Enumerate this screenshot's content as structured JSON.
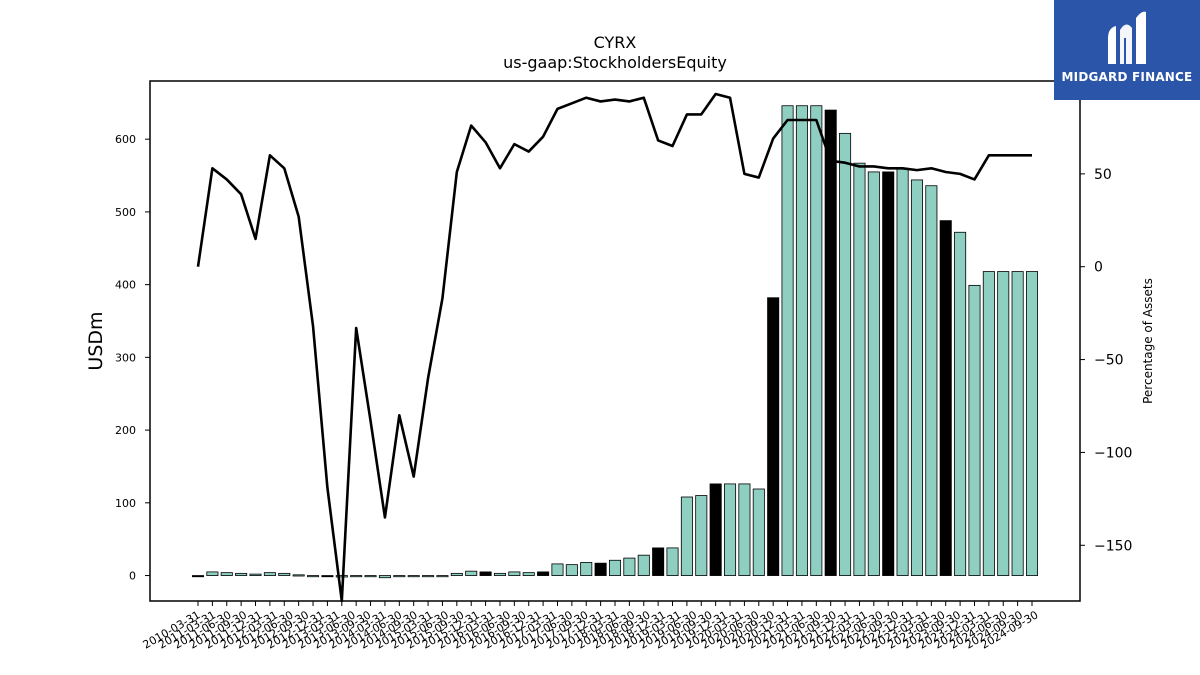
{
  "brand": {
    "name": "MIDGARD FINANCE",
    "bg_color": "#2a55a8"
  },
  "chart_data": {
    "type": "bar",
    "title": "CYRX",
    "subtitle": "us-gaap:StockholdersEquity",
    "ylabel": "USDm",
    "y2label": "Percentage of Assets",
    "ylim": [
      -35,
      680
    ],
    "y2lim": [
      -180,
      100
    ],
    "yticks": [
      0,
      100,
      200,
      300,
      400,
      500,
      600
    ],
    "y2ticks": [
      -150,
      -100,
      -50,
      0,
      50
    ],
    "bar_color_q": "#8ecfc2",
    "bar_color_fy": "#000000",
    "line_color": "#000000",
    "categories": [
      "2010-03-31",
      "2010-06-30",
      "2010-09-30",
      "2010-12-31",
      "2011-03-31",
      "2011-06-30",
      "2011-09-30",
      "2011-12-31",
      "2012-03-31",
      "2012-06-30",
      "2012-09-30",
      "2012-12-31",
      "2013-03-31",
      "2013-06-30",
      "2013-09-30",
      "2013-12-31",
      "2014-03-31",
      "2014-06-30",
      "2014-09-30",
      "2014-12-31",
      "2015-03-31",
      "2015-06-30",
      "2015-09-30",
      "2015-12-31",
      "2016-03-31",
      "2016-06-30",
      "2016-09-30",
      "2016-12-31",
      "2017-03-31",
      "2017-06-30",
      "2017-09-30",
      "2017-12-31",
      "2018-03-31",
      "2018-06-30",
      "2018-09-30",
      "2018-12-31",
      "2019-03-31",
      "2019-06-30",
      "2019-09-30",
      "2019-12-31",
      "2020-03-31",
      "2020-06-30",
      "2020-09-30",
      "2020-12-31",
      "2021-03-31",
      "2021-06-30",
      "2021-09-30",
      "2021-12-31",
      "2022-03-31",
      "2022-06-30",
      "2022-09-30",
      "2022-12-31",
      "2023-03-31",
      "2023-06-30",
      "2023-09-30",
      "2023-12-31",
      "2024-03-31",
      "2024-06-30",
      "2024-09-30"
    ],
    "xtick_labels": [
      "2010-03-31",
      "2011-03-31",
      "2011-06-30",
      "2011-09-30",
      "2011-12-31",
      "2012-03-31",
      "2012-06-30",
      "2012-09-30",
      "2012-12-31",
      "2013-03-31",
      "2013-06-30",
      "2013-09-30",
      "2014-03-31",
      "2014-06-30",
      "2014-09-30",
      "2015-03-31",
      "2015-06-30",
      "2015-09-30",
      "2015-12-31",
      "2016-03-31",
      "2016-06-30",
      "2016-09-30",
      "2016-12-31",
      "2017-03-31",
      "2017-06-30",
      "2017-09-30",
      "2017-12-31",
      "2018-03-31",
      "2018-06-30",
      "2018-09-30",
      "2018-12-31",
      "2019-03-31",
      "2019-06-30",
      "2019-09-30",
      "2019-12-31",
      "2020-03-31",
      "2020-06-30",
      "2020-09-30",
      "2020-12-31",
      "2021-03-31",
      "2021-06-30",
      "2021-09-30",
      "2021-12-31",
      "2022-03-31",
      "2022-06-30",
      "2022-09-30",
      "2022-12-31",
      "2023-03-31",
      "2023-06-30",
      "2023-09-30",
      "2023-12-31",
      "2024-03-31",
      "2024-06-30",
      "2024-09-30",
      "2024-09-30"
    ],
    "values": [
      -1,
      5,
      4,
      3,
      2,
      4,
      3,
      1,
      0,
      -1,
      -2,
      0,
      -1,
      -3,
      -1,
      -1,
      -1,
      0,
      3,
      6,
      5,
      3,
      5,
      4,
      5,
      16,
      15,
      18,
      17,
      21,
      24,
      28,
      38,
      38,
      108,
      110,
      126,
      126,
      126,
      119,
      382,
      646,
      646,
      646,
      640,
      608,
      567,
      555,
      555,
      560,
      544,
      536,
      488,
      472,
      399,
      418,
      418,
      418,
      418
    ],
    "bar_is_fy": [
      true,
      false,
      false,
      false,
      false,
      false,
      false,
      false,
      false,
      true,
      false,
      false,
      false,
      false,
      false,
      false,
      false,
      false,
      false,
      false,
      true,
      false,
      false,
      false,
      true,
      false,
      false,
      false,
      true,
      false,
      false,
      false,
      true,
      false,
      false,
      false,
      true,
      false,
      false,
      false,
      true,
      false,
      false,
      false,
      true,
      false,
      false,
      false,
      true,
      false,
      false,
      false,
      true,
      false,
      false,
      false,
      false,
      false,
      false
    ],
    "pct_of_assets": [
      0,
      53,
      47,
      39,
      15,
      60,
      53,
      27,
      -32,
      -119,
      -180,
      -33,
      -83,
      -135,
      -80,
      -113,
      -60,
      -17,
      51,
      76,
      67,
      53,
      66,
      62,
      70,
      85,
      88,
      91,
      89,
      90,
      89,
      91,
      68,
      65,
      82,
      82,
      93,
      91,
      50,
      48,
      69,
      79,
      79,
      79,
      57,
      56,
      54,
      54,
      53,
      53,
      52,
      53,
      51,
      50,
      47,
      60,
      60,
      60,
      60
    ]
  }
}
